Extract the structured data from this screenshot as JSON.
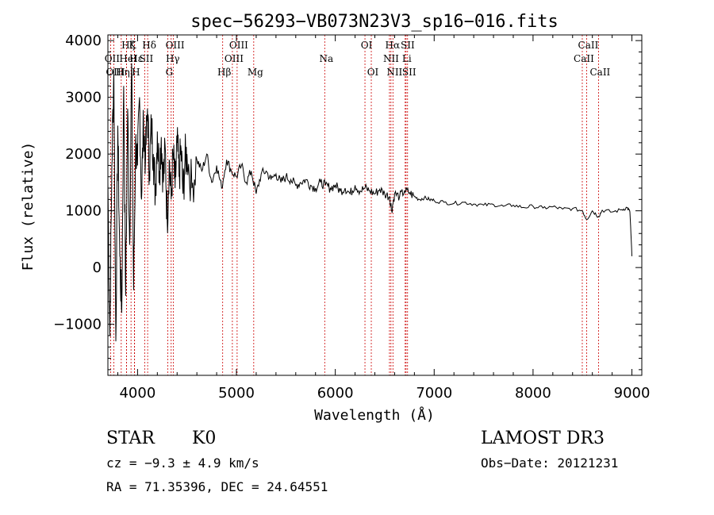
{
  "chart_data": {
    "type": "line",
    "title": "spec−56293−VB073N23V3_sp16−016.fits",
    "xlabel": "Wavelength (Å)",
    "ylabel": "Flux (relative)",
    "xlim": [
      3700,
      9100
    ],
    "ylim": [
      -1900,
      4100
    ],
    "xticks": [
      {
        "value": 4000,
        "label": "4000"
      },
      {
        "value": 5000,
        "label": "5000"
      },
      {
        "value": 6000,
        "label": "6000"
      },
      {
        "value": 7000,
        "label": "7000"
      },
      {
        "value": 8000,
        "label": "8000"
      },
      {
        "value": 9000,
        "label": "9000"
      }
    ],
    "yticks": [
      {
        "value": -1000,
        "label": "−1000"
      },
      {
        "value": 0,
        "label": "0"
      },
      {
        "value": 1000,
        "label": "1000"
      },
      {
        "value": 2000,
        "label": "2000"
      },
      {
        "value": 3000,
        "label": "3000"
      },
      {
        "value": 4000,
        "label": "4000"
      }
    ],
    "line_color": "#000000",
    "marker_color": "#cc0000",
    "series": [
      {
        "name": "flux",
        "x": [
          3700,
          3720,
          3740,
          3760,
          3780,
          3800,
          3820,
          3840,
          3860,
          3880,
          3900,
          3920,
          3940,
          3960,
          3980,
          4000,
          4020,
          4040,
          4060,
          4080,
          4100,
          4120,
          4140,
          4160,
          4180,
          4200,
          4220,
          4240,
          4260,
          4280,
          4300,
          4320,
          4340,
          4360,
          4380,
          4400,
          4420,
          4440,
          4460,
          4480,
          4500,
          4550,
          4600,
          4650,
          4700,
          4750,
          4800,
          4850,
          4900,
          4950,
          5000,
          5050,
          5100,
          5150,
          5200,
          5250,
          5300,
          5350,
          5400,
          5450,
          5500,
          5550,
          5600,
          5650,
          5700,
          5750,
          5800,
          5850,
          5900,
          5950,
          6000,
          6050,
          6100,
          6150,
          6200,
          6250,
          6300,
          6350,
          6400,
          6450,
          6500,
          6550,
          6570,
          6600,
          6650,
          6700,
          6750,
          6800,
          6850,
          6900,
          6950,
          7000,
          7100,
          7200,
          7300,
          7400,
          7500,
          7600,
          7700,
          7800,
          7900,
          8000,
          8100,
          8200,
          8300,
          8400,
          8500,
          8542,
          8600,
          8662,
          8700,
          8800,
          8900,
          8950,
          8980,
          9000
        ],
        "y": [
          1500,
          -1200,
          1800,
          3500,
          -1300,
          2500,
          200,
          -800,
          3200,
          -500,
          2800,
          400,
          3600,
          -400,
          2200,
          1800,
          3000,
          1200,
          2600,
          1900,
          2800,
          1700,
          2500,
          2000,
          1300,
          2400,
          1700,
          2300,
          1500,
          2100,
          800,
          1900,
          1200,
          2000,
          1400,
          2200,
          1600,
          2100,
          1300,
          1900,
          2000,
          1400,
          1900,
          1700,
          2000,
          1500,
          1800,
          1400,
          1900,
          1700,
          1600,
          1800,
          1500,
          1700,
          1300,
          1650,
          1700,
          1550,
          1650,
          1500,
          1600,
          1550,
          1450,
          1500,
          1550,
          1450,
          1400,
          1500,
          1450,
          1400,
          1450,
          1350,
          1400,
          1300,
          1450,
          1350,
          1400,
          1350,
          1300,
          1380,
          1300,
          1250,
          1000,
          1300,
          1250,
          1350,
          1320,
          1250,
          1200,
          1230,
          1200,
          1180,
          1150,
          1130,
          1150,
          1120,
          1100,
          1110,
          1080,
          1100,
          1060,
          1080,
          1050,
          1070,
          1030,
          1040,
          1000,
          850,
          1000,
          900,
          1010,
          980,
          1020,
          1060,
          980,
          200
        ]
      }
    ],
    "line_markers": [
      {
        "label": "Hζ",
        "x": 3889,
        "row": 1
      },
      {
        "label": "K",
        "x": 3934,
        "row": 1
      },
      {
        "label": "Hδ",
        "x": 4102,
        "row": 1
      },
      {
        "label": "OIII",
        "x": 4363,
        "row": 1
      },
      {
        "label": "OIII",
        "x": 5007,
        "row": 1
      },
      {
        "label": "OI",
        "x": 6300,
        "row": 1
      },
      {
        "label": "Hα",
        "x": 6563,
        "row": 1
      },
      {
        "label": "SII",
        "x": 6716,
        "row": 1
      },
      {
        "label": "CaII",
        "x": 8542,
        "row": 1
      },
      {
        "label": "OII",
        "x": 3727,
        "row": 2
      },
      {
        "label": "Hε",
        "x": 3970,
        "row": 2
      },
      {
        "label": "HeI",
        "x": 3889,
        "row": 2
      },
      {
        "label": "SII",
        "x": 4072,
        "row": 2
      },
      {
        "label": "Hγ",
        "x": 4340,
        "row": 2
      },
      {
        "label": "OIII",
        "x": 4959,
        "row": 2
      },
      {
        "label": "Na",
        "x": 5893,
        "row": 2
      },
      {
        "label": "NII",
        "x": 6548,
        "row": 2
      },
      {
        "label": "Li",
        "x": 6707,
        "row": 2
      },
      {
        "label": "CaII",
        "x": 8498,
        "row": 2
      },
      {
        "label": "OIII",
        "x": 3760,
        "row": 3
      },
      {
        "label": "Hη",
        "x": 3835,
        "row": 3
      },
      {
        "label": "H",
        "x": 3968,
        "row": 3
      },
      {
        "label": "G",
        "x": 4305,
        "row": 3
      },
      {
        "label": "Hβ",
        "x": 4861,
        "row": 3
      },
      {
        "label": "Mg",
        "x": 5175,
        "row": 3
      },
      {
        "label": "OI",
        "x": 6364,
        "row": 3
      },
      {
        "label": "NII",
        "x": 6583,
        "row": 3
      },
      {
        "label": "SII",
        "x": 6731,
        "row": 3
      },
      {
        "label": "CaII",
        "x": 8662,
        "row": 3
      }
    ]
  },
  "info": {
    "object_type": "STAR",
    "subclass": "K0",
    "survey": "LAMOST DR3",
    "cz": "cz = −9.3 ± 4.9 km/s",
    "obs_date": "Obs−Date: 20121231",
    "coords": "RA =  71.35396, DEC =  24.64551"
  }
}
